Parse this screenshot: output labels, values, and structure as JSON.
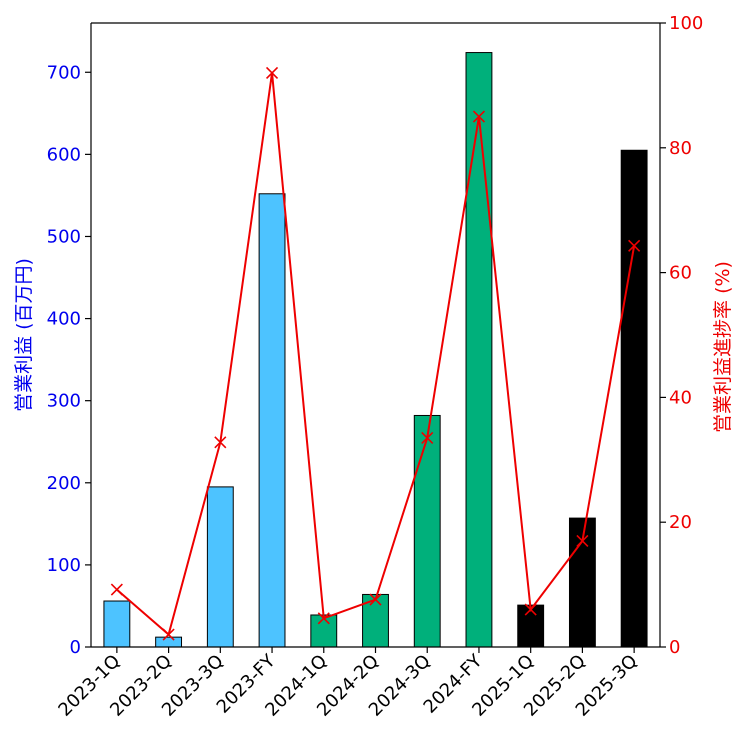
{
  "chart_data": {
    "type": "bar",
    "categories": [
      "2023-1Q",
      "2023-2Q",
      "2023-3Q",
      "2023-FY",
      "2024-1Q",
      "2024-2Q",
      "2024-3Q",
      "2024-FY",
      "2025-1Q",
      "2025-2Q",
      "2025-3Q"
    ],
    "series": [
      {
        "kind": "bar",
        "axis": "left",
        "values": [
          56,
          12,
          195,
          552,
          39,
          64,
          282,
          724,
          51,
          157,
          605
        ],
        "colors": [
          "#4dc3ff",
          "#4dc3ff",
          "#4dc3ff",
          "#4dc3ff",
          "#00b07b",
          "#00b07b",
          "#00b07b",
          "#00b07b",
          "#000000",
          "#000000",
          "#000000"
        ]
      },
      {
        "kind": "line",
        "axis": "right",
        "color": "#ee0000",
        "marker": "x",
        "values": [
          9.2,
          2.0,
          32.8,
          92.0,
          4.6,
          7.6,
          33.5,
          85.0,
          6.0,
          17.0,
          64.3
        ]
      }
    ],
    "ylabel": "営業利益 (百万円)",
    "ylabel_right": "営業利益進捗率 (%)",
    "xlabel": "",
    "title": "",
    "ylim": [
      0,
      760
    ],
    "ylim_right": [
      0,
      100
    ],
    "yticks_left": [
      "0",
      "100",
      "200",
      "300",
      "400",
      "500",
      "600",
      "700"
    ],
    "yticks_right": [
      "0",
      "20",
      "40",
      "60",
      "80",
      "100"
    ],
    "left_axis_color": "#0000ee",
    "right_axis_color": "#ee0000",
    "grid": false,
    "legend": "none"
  }
}
